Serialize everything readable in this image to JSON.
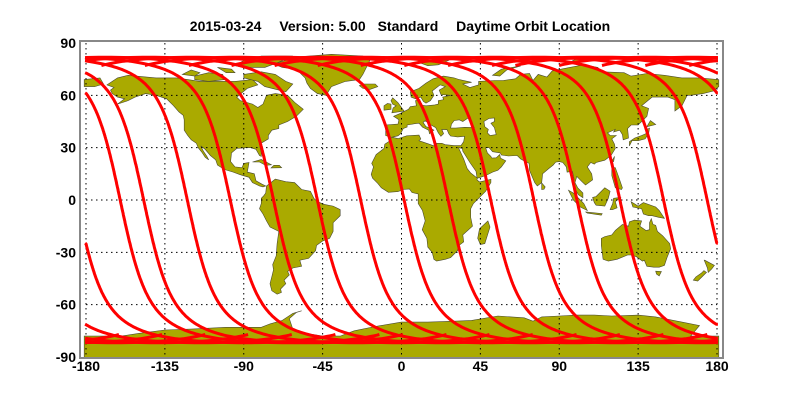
{
  "title": {
    "date": "2015-03-24",
    "version": "Version: 5.00",
    "product": "Standard",
    "description": "Daytime Orbit Location"
  },
  "colors": {
    "land": "#aaaa00",
    "coast": "#4a4a30",
    "track": "#ff0000",
    "frame": "#888888",
    "grid": "#000000"
  },
  "chart_data": {
    "type": "map",
    "projection": "equirectangular",
    "xlim": [
      -180,
      180
    ],
    "ylim": [
      -90,
      90
    ],
    "grid": true,
    "x_ticks": [
      "-180",
      "-135",
      "-90",
      "-45",
      "0",
      "45",
      "90",
      "135",
      "180"
    ],
    "y_ticks": [
      "90",
      "60",
      "30",
      "0",
      "-30",
      "-60",
      "-90"
    ],
    "x_tick_values": [
      -180,
      -135,
      -90,
      -45,
      0,
      45,
      90,
      135,
      180
    ],
    "y_tick_values": [
      90,
      60,
      30,
      0,
      -30,
      -60,
      -90
    ],
    "layers": [
      {
        "name": "land",
        "kind": "filled coastlines"
      },
      {
        "name": "orbit-tracks",
        "kind": "ascending daytime ground tracks",
        "max_latitude": 82,
        "equator_crossing_longitudes": [
          -160.5,
          -147.1,
          -122.2,
          -97.7,
          -73.0,
          -48.0,
          -23.3,
          1.5,
          26.6,
          50.9,
          75.5,
          100.1,
          124.6,
          149.5,
          174.4
        ]
      }
    ]
  }
}
